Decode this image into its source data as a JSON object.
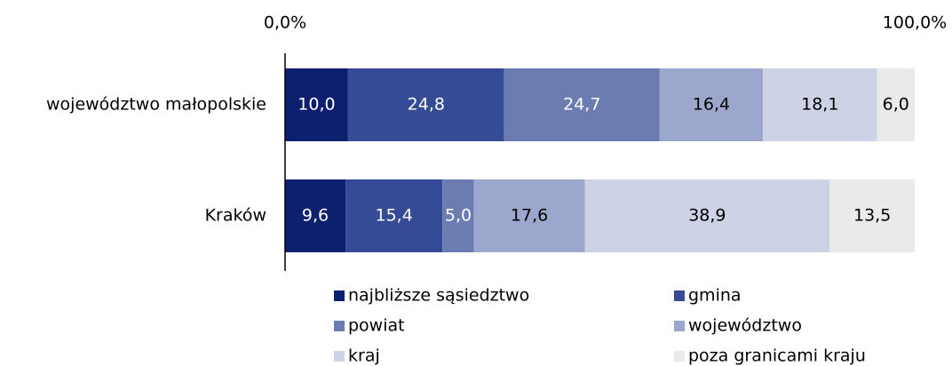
{
  "chart_data": {
    "type": "stacked-barh",
    "categories": [
      "województwo małopolskie",
      "Kraków"
    ],
    "series": [
      {
        "name": "najbliższe sąsiedztwo",
        "color": "#0d1f6f",
        "values": [
          10.0,
          9.6
        ],
        "value_labels": [
          "10,0",
          "9,6"
        ]
      },
      {
        "name": "gmina",
        "color": "#354b95",
        "values": [
          24.8,
          15.4
        ],
        "value_labels": [
          "24,8",
          "15,4"
        ]
      },
      {
        "name": "powiat",
        "color": "#6b7cb1",
        "values": [
          24.7,
          5.0
        ],
        "value_labels": [
          "24,7",
          "5,0"
        ]
      },
      {
        "name": "województwo",
        "color": "#9ba7cc",
        "values": [
          16.4,
          17.6
        ],
        "value_labels": [
          "16,4",
          "17,6"
        ]
      },
      {
        "name": "kraj",
        "color": "#cdd2e6",
        "values": [
          18.1,
          38.9
        ],
        "value_labels": [
          "18,1",
          "38,9"
        ]
      },
      {
        "name": "poza granicami kraju",
        "color": "#e9ebeb",
        "values": [
          6.0,
          13.5
        ],
        "value_labels": [
          "6,0",
          "13,5"
        ]
      }
    ],
    "xlim": [
      0,
      100
    ],
    "xticks": [
      {
        "value": 0,
        "label": "0,0%"
      },
      {
        "value": 100,
        "label": "100,0%"
      }
    ]
  }
}
